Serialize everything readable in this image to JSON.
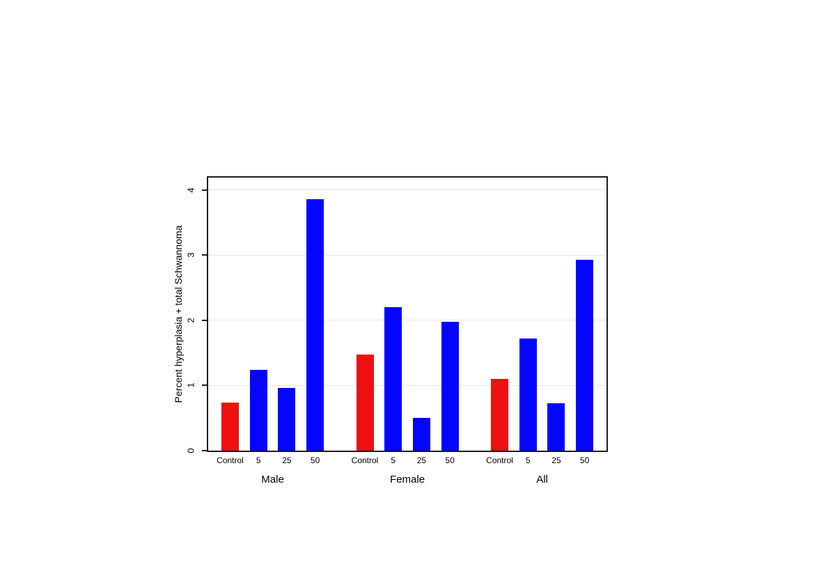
{
  "chart_data": {
    "type": "bar",
    "title": "",
    "xlabel": "",
    "ylabel": "Percent hyperplasia + total Schwannoma",
    "ylim": [
      0,
      4.19
    ],
    "yticks": [
      0,
      1,
      2,
      3,
      4
    ],
    "grid": "horizontal gridlines at y ticks, light gray, drawn behind bars",
    "legend": "none",
    "groups": [
      {
        "label": "Male",
        "categories": [
          "Control",
          "5",
          "25",
          "50"
        ],
        "values": [
          0.74,
          1.24,
          0.96,
          3.86
        ]
      },
      {
        "label": "Female",
        "categories": [
          "Control",
          "5",
          "25",
          "50"
        ],
        "values": [
          1.48,
          2.2,
          0.5,
          1.98
        ]
      },
      {
        "label": "All",
        "categories": [
          "Control",
          "5",
          "25",
          "50"
        ],
        "values": [
          1.1,
          1.72,
          0.73,
          2.93
        ]
      }
    ],
    "color_rule": "Control bars red, dose bars (5, 25, 50) blue"
  },
  "colors": {
    "control_bar": "#ed1010",
    "dose_bar": "#0505ff",
    "gridline": "#e4e4e4",
    "axis": "#1c1c1c",
    "background": "#ffffff",
    "text": "#000000"
  }
}
